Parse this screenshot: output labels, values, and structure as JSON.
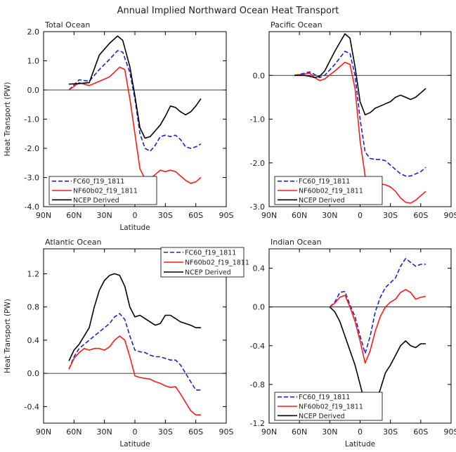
{
  "figure_title": "Annual Implied Northward Ocean Heat Transport",
  "colors": {
    "fc60": "#1f1fd6",
    "nf60b02": "#ff1a1a",
    "ncep": "#000000",
    "axis": "#000000"
  },
  "chart_data": [
    {
      "type": "line",
      "title": "Total Ocean",
      "xlabel": "Latitude",
      "ylabel": "Heat Transport (PW)",
      "xlim": [
        90,
        -90
      ],
      "ylim": [
        -4.0,
        2.0
      ],
      "xticks": [
        90,
        60,
        30,
        0,
        -30,
        -60,
        -90
      ],
      "xtick_labels": [
        "90N",
        "60N",
        "30N",
        "0",
        "30S",
        "60S",
        "90S"
      ],
      "yticks": [
        -4.0,
        -3.0,
        -2.0,
        -1.0,
        0.0,
        1.0,
        2.0
      ],
      "ytick_labels": [
        "-4.0",
        "-3.0",
        "-2.0",
        "-1.0",
        "0.0",
        "1.0",
        "2.0"
      ],
      "legend_position": "bottom-left",
      "series": [
        {
          "name": "FC60_f19_1811",
          "style": "dashed",
          "color": "#1f1fd6",
          "x": [
            65,
            55,
            45,
            35,
            25,
            17,
            12,
            5,
            0,
            -5,
            -10,
            -15,
            -20,
            -25,
            -30,
            -35,
            -40,
            -45,
            -50,
            -55,
            -60,
            -65
          ],
          "y": [
            0.0,
            0.35,
            0.3,
            0.7,
            1.05,
            1.35,
            1.3,
            0.6,
            -0.3,
            -1.5,
            -2.0,
            -2.1,
            -1.9,
            -1.6,
            -1.55,
            -1.6,
            -1.55,
            -1.7,
            -1.95,
            -2.0,
            -1.95,
            -1.85
          ]
        },
        {
          "name": "NF60b02_f19_1811",
          "style": "solid",
          "color": "#ff1a1a",
          "x": [
            65,
            55,
            45,
            35,
            25,
            15,
            10,
            5,
            0,
            -5,
            -10,
            -15,
            -20,
            -25,
            -30,
            -35,
            -40,
            -45,
            -50,
            -55,
            -60,
            -65
          ],
          "y": [
            0.0,
            0.25,
            0.15,
            0.3,
            0.45,
            0.78,
            0.7,
            -0.3,
            -1.5,
            -2.7,
            -3.05,
            -3.05,
            -2.9,
            -2.75,
            -2.8,
            -2.75,
            -2.8,
            -2.95,
            -3.1,
            -3.2,
            -3.15,
            -3.0
          ]
        },
        {
          "name": "NCEP Derived",
          "style": "solid",
          "color": "#000000",
          "x": [
            65,
            55,
            45,
            35,
            25,
            17,
            12,
            5,
            0,
            -5,
            -10,
            -15,
            -20,
            -25,
            -30,
            -35,
            -40,
            -45,
            -50,
            -55,
            -60,
            -65
          ],
          "y": [
            0.2,
            0.22,
            0.25,
            1.2,
            1.6,
            1.85,
            1.7,
            0.8,
            -0.2,
            -1.3,
            -1.65,
            -1.6,
            -1.4,
            -1.2,
            -0.9,
            -0.55,
            -0.6,
            -0.75,
            -0.85,
            -0.75,
            -0.55,
            -0.3
          ]
        }
      ]
    },
    {
      "type": "line",
      "title": "Pacific Ocean",
      "xlabel": "",
      "ylabel": "",
      "xlim": [
        90,
        -90
      ],
      "ylim": [
        -3.0,
        1.0
      ],
      "xticks": [
        90,
        60,
        30,
        0,
        -30,
        -60,
        -90
      ],
      "xtick_labels": [
        "90N",
        "60N",
        "30N",
        "0",
        "30S",
        "60S",
        "90S"
      ],
      "yticks": [
        -3.0,
        -2.0,
        -1.0,
        0.0
      ],
      "ytick_labels": [
        "-3.0",
        "-2.0",
        "-1.0",
        "0.0"
      ],
      "legend_position": "bottom-left",
      "series": [
        {
          "name": "FC60_f19_1811",
          "style": "dashed",
          "color": "#1f1fd6",
          "x": [
            65,
            55,
            50,
            45,
            40,
            35,
            25,
            15,
            10,
            5,
            0,
            -5,
            -10,
            -15,
            -20,
            -25,
            -30,
            -35,
            -40,
            -45,
            -50,
            -55,
            -60,
            -65
          ],
          "y": [
            0.0,
            0.05,
            0.08,
            0.02,
            -0.05,
            0.0,
            0.25,
            0.55,
            0.5,
            0.0,
            -1.0,
            -1.75,
            -1.9,
            -1.92,
            -1.92,
            -1.95,
            -2.05,
            -2.15,
            -2.25,
            -2.3,
            -2.3,
            -2.25,
            -2.2,
            -2.1
          ]
        },
        {
          "name": "NF60b02_f19_1811",
          "style": "solid",
          "color": "#ff1a1a",
          "x": [
            65,
            55,
            50,
            45,
            40,
            35,
            25,
            15,
            10,
            5,
            0,
            -5,
            -10,
            -15,
            -20,
            -25,
            -30,
            -35,
            -40,
            -45,
            -50,
            -55,
            -60,
            -65
          ],
          "y": [
            0.0,
            0.03,
            0.05,
            -0.05,
            -0.12,
            -0.08,
            0.1,
            0.3,
            0.25,
            -0.3,
            -1.5,
            -2.3,
            -2.5,
            -2.5,
            -2.48,
            -2.5,
            -2.55,
            -2.65,
            -2.8,
            -2.9,
            -2.92,
            -2.85,
            -2.75,
            -2.65
          ]
        },
        {
          "name": "NCEP Derived",
          "style": "solid",
          "color": "#000000",
          "x": [
            65,
            55,
            50,
            45,
            40,
            35,
            25,
            15,
            10,
            5,
            0,
            -5,
            -10,
            -15,
            -20,
            -25,
            -30,
            -35,
            -40,
            -45,
            -50,
            -55,
            -60,
            -65
          ],
          "y": [
            0.0,
            0.0,
            -0.02,
            -0.05,
            -0.02,
            0.1,
            0.55,
            0.95,
            0.85,
            0.2,
            -0.6,
            -0.9,
            -0.85,
            -0.75,
            -0.7,
            -0.65,
            -0.6,
            -0.5,
            -0.45,
            -0.5,
            -0.55,
            -0.5,
            -0.4,
            -0.3
          ]
        }
      ]
    },
    {
      "type": "line",
      "title": "Atlantic Ocean",
      "xlabel": "Latitude",
      "ylabel": "Heat Transport (PW)",
      "xlim": [
        90,
        -90
      ],
      "ylim": [
        -0.6,
        1.5
      ],
      "xticks": [
        90,
        60,
        30,
        0,
        -30,
        -60,
        -90
      ],
      "xtick_labels": [
        "90N",
        "60N",
        "30N",
        "0",
        "30S",
        "60S",
        "90S"
      ],
      "yticks": [
        -0.4,
        0.0,
        0.4,
        0.8,
        1.2
      ],
      "ytick_labels": [
        "-0.4",
        "0.0",
        "0.4",
        "0.8",
        "1.2"
      ],
      "legend_position": "top-right",
      "series": [
        {
          "name": "FC60_f19_1811",
          "style": "dashed",
          "color": "#1f1fd6",
          "x": [
            65,
            60,
            55,
            50,
            45,
            40,
            35,
            30,
            25,
            20,
            15,
            10,
            5,
            0,
            -5,
            -10,
            -15,
            -20,
            -25,
            -30,
            -35,
            -40,
            -45,
            -50,
            -55,
            -60,
            -65
          ],
          "y": [
            0.05,
            0.2,
            0.3,
            0.35,
            0.4,
            0.45,
            0.5,
            0.55,
            0.6,
            0.68,
            0.72,
            0.65,
            0.45,
            0.28,
            0.26,
            0.25,
            0.22,
            0.2,
            0.2,
            0.18,
            0.16,
            0.16,
            0.1,
            0.0,
            -0.1,
            -0.2,
            -0.2
          ]
        },
        {
          "name": "NF60b02_f19_1811",
          "style": "solid",
          "color": "#ff1a1a",
          "x": [
            65,
            60,
            55,
            50,
            45,
            40,
            35,
            30,
            25,
            20,
            15,
            10,
            5,
            0,
            -5,
            -10,
            -15,
            -20,
            -25,
            -30,
            -35,
            -40,
            -45,
            -50,
            -55,
            -60,
            -65
          ],
          "y": [
            0.05,
            0.18,
            0.25,
            0.3,
            0.28,
            0.3,
            0.3,
            0.28,
            0.32,
            0.4,
            0.45,
            0.4,
            0.2,
            -0.03,
            -0.05,
            -0.06,
            -0.07,
            -0.1,
            -0.12,
            -0.15,
            -0.17,
            -0.16,
            -0.25,
            -0.35,
            -0.45,
            -0.5,
            -0.5
          ]
        },
        {
          "name": "NCEP Derived",
          "style": "solid",
          "color": "#000000",
          "x": [
            65,
            60,
            55,
            50,
            45,
            40,
            35,
            30,
            25,
            20,
            15,
            10,
            5,
            0,
            -5,
            -10,
            -15,
            -20,
            -25,
            -30,
            -35,
            -40,
            -45,
            -50,
            -55,
            -60,
            -65
          ],
          "y": [
            0.15,
            0.28,
            0.35,
            0.45,
            0.55,
            0.8,
            1.0,
            1.12,
            1.18,
            1.2,
            1.18,
            1.05,
            0.8,
            0.68,
            0.7,
            0.66,
            0.62,
            0.58,
            0.6,
            0.7,
            0.7,
            0.66,
            0.62,
            0.6,
            0.58,
            0.55,
            0.55
          ]
        }
      ]
    },
    {
      "type": "line",
      "title": "Indian Ocean",
      "xlabel": "Latitude",
      "ylabel": "",
      "xlim": [
        90,
        -90
      ],
      "ylim": [
        -1.2,
        0.6
      ],
      "xticks": [
        90,
        60,
        30,
        0,
        -30,
        -60,
        -90
      ],
      "xtick_labels": [
        "90N",
        "60N",
        "30N",
        "0",
        "30S",
        "60S",
        "90S"
      ],
      "yticks": [
        -1.2,
        -0.8,
        -0.4,
        0.0,
        0.4
      ],
      "ytick_labels": [
        "-1.2",
        "-0.8",
        "-0.4",
        "0.0",
        "0.4"
      ],
      "legend_position": "bottom-left",
      "series": [
        {
          "name": "FC60_f19_1811",
          "style": "dashed",
          "color": "#1f1fd6",
          "x": [
            30,
            25,
            20,
            15,
            10,
            5,
            0,
            -5,
            -10,
            -15,
            -20,
            -25,
            -30,
            -35,
            -40,
            -45,
            -50,
            -55,
            -60,
            -65
          ],
          "y": [
            0.0,
            0.05,
            0.15,
            0.16,
            0.02,
            -0.1,
            -0.3,
            -0.48,
            -0.3,
            -0.05,
            0.1,
            0.2,
            0.25,
            0.3,
            0.42,
            0.5,
            0.46,
            0.42,
            0.44,
            0.44
          ]
        },
        {
          "name": "NF60b02_f19_1811",
          "style": "solid",
          "color": "#ff1a1a",
          "x": [
            30,
            25,
            20,
            15,
            10,
            5,
            0,
            -5,
            -10,
            -15,
            -20,
            -25,
            -30,
            -35,
            -40,
            -45,
            -50,
            -55,
            -60,
            -65
          ],
          "y": [
            0.0,
            0.04,
            0.1,
            0.12,
            0.0,
            -0.15,
            -0.35,
            -0.58,
            -0.45,
            -0.25,
            -0.1,
            0.0,
            0.05,
            0.08,
            0.15,
            0.18,
            0.15,
            0.08,
            0.1,
            0.11
          ]
        },
        {
          "name": "NCEP Derived",
          "style": "solid",
          "color": "#000000",
          "x": [
            30,
            25,
            20,
            15,
            10,
            5,
            0,
            -5,
            -10,
            -15,
            -20,
            -25,
            -30,
            -35,
            -40,
            -45,
            -50,
            -55,
            -60,
            -65
          ],
          "y": [
            0.0,
            -0.05,
            -0.15,
            -0.3,
            -0.45,
            -0.6,
            -0.8,
            -1.0,
            -1.06,
            -1.0,
            -0.85,
            -0.68,
            -0.6,
            -0.5,
            -0.4,
            -0.35,
            -0.4,
            -0.42,
            -0.38,
            -0.38
          ]
        }
      ]
    }
  ]
}
